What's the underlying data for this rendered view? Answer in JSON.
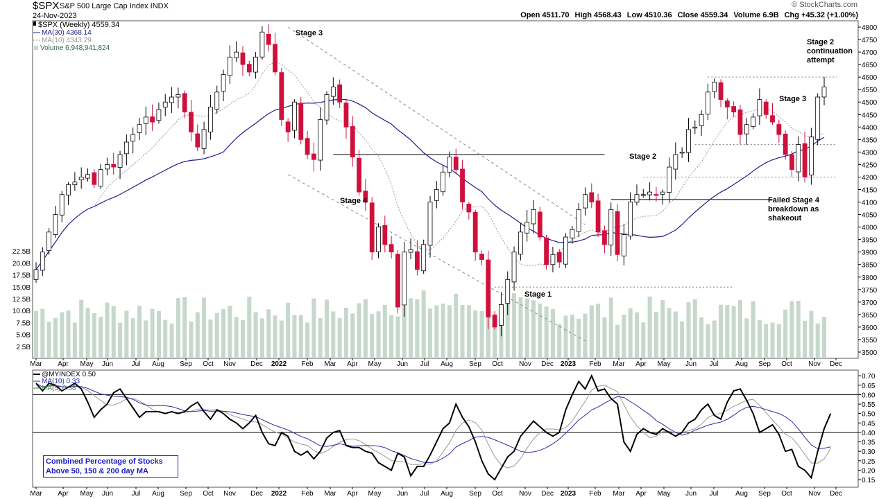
{
  "header": {
    "symbol": "$SPX",
    "name": "S&P 500 Large Cap Index  INDX",
    "date": "24-Nov-2023",
    "credit": "© StockCharts.com",
    "open": "Open 4511.70",
    "high": "High 4568.43",
    "low": "Low 4510.36",
    "close": "Close 4559.34",
    "volume": "Volume 6.9B",
    "chg": "Chg +45.32 (+1.00%)"
  },
  "colors": {
    "up": "#ffffff",
    "down": "#d0103c",
    "ma30": "#1c1c8c",
    "ma10": "#999999",
    "volume": "#c6d8cc",
    "breadth": "#000000",
    "breadth_ma10": "#2a2aa0",
    "breadth_ma5": "#999999",
    "box_text": "#1c1cc8"
  },
  "legend": {
    "price": "$SPX (Weekly) 4559.34",
    "ma30": "MA(30) 4368.14",
    "ma10": "MA(10) 4343.29",
    "volume": "Volume 6,948,941,824"
  },
  "breadth_legend": {
    "main": "@MYINDEX 0.50",
    "ma10": "MA(10) 0.33",
    "ma5": "MA(5) 0.38"
  },
  "breadth_box": {
    "line1": "Combined Percentage of Stocks",
    "line2": "Above 50, 150 & 200 day MA"
  },
  "annotations": {
    "stage3_left": "Stage 3",
    "stage4": "Stage 4",
    "stage1": "Stage 1",
    "stage2": "Stage 2",
    "stage2_cont": [
      "Stage 2",
      "continuation",
      "attempt"
    ],
    "stage3_right": "Stage 3",
    "failed": [
      "Failed Stage 4",
      "breakdown as",
      "shakeout"
    ]
  },
  "chart_data": [
    {
      "type": "candlestick",
      "title": "$SPX S&P 500 Large Cap Index (Weekly)",
      "x_ticks": [
        "Mar",
        "Apr",
        "May",
        "Jun",
        "Jul",
        "Aug",
        "Sep",
        "Oct",
        "Nov",
        "Dec",
        "2022",
        "Feb",
        "Mar",
        "Apr",
        "May",
        "Jun",
        "Jul",
        "Aug",
        "Sep",
        "Oct",
        "Nov",
        "Dec",
        "2023",
        "Feb",
        "Mar",
        "Apr",
        "May",
        "Jun",
        "Jul",
        "Aug",
        "Sep",
        "Oct",
        "Nov",
        "Dec"
      ],
      "y_ticks": [
        3500,
        3550,
        3600,
        3650,
        3700,
        3750,
        3800,
        3850,
        3900,
        3950,
        4000,
        4050,
        4100,
        4150,
        4200,
        4250,
        4300,
        4350,
        4400,
        4450,
        4500,
        4550,
        4600,
        4650,
        4700,
        4750,
        4800
      ],
      "ylim": [
        3475,
        4825
      ],
      "volume_ticks": [
        "2.5B",
        "5.0B",
        "7.5B",
        "10.0B",
        "12.5B",
        "15.0B",
        "17.5B",
        "20.0B",
        "22.5B"
      ],
      "closes_approx": [
        3830,
        3900,
        3980,
        4050,
        4130,
        4170,
        4180,
        4200,
        4210,
        4170,
        4230,
        4250,
        4240,
        4290,
        4340,
        4370,
        4410,
        4440,
        4420,
        4470,
        4500,
        4520,
        4530,
        4460,
        4380,
        4320,
        4390,
        4480,
        4540,
        4610,
        4680,
        4700,
        4650,
        4620,
        4680,
        4780,
        4730,
        4620,
        4430,
        4380,
        4500,
        4350,
        4290,
        4270,
        4430,
        4530,
        4560,
        4500,
        4400,
        4280,
        4140,
        4100,
        3900,
        4000,
        3930,
        3900,
        3680,
        3900,
        3910,
        3830,
        3930,
        4100,
        4150,
        4220,
        4280,
        4230,
        4100,
        4060,
        3900,
        3870,
        3640,
        3600,
        3690,
        3790,
        3900,
        3980,
        4020,
        4070,
        3960,
        3850,
        3890,
        3860,
        3960,
        3990,
        4070,
        4130,
        4100,
        3980,
        3930,
        4070,
        3890,
        3970,
        4100,
        4130,
        4130,
        4140,
        4130,
        4140,
        4240,
        4290,
        4300,
        4390,
        4400,
        4450,
        4540,
        4580,
        4510,
        4480,
        4460,
        4370,
        4410,
        4440,
        4510,
        4450,
        4420,
        4370,
        4290,
        4230,
        4330,
        4200,
        4360,
        4520,
        4560
      ],
      "annotations": [
        "Stage 3",
        "Stage 4",
        "Stage 1",
        "Stage 2",
        "Stage 2 continuation attempt",
        "Stage 3",
        "Failed Stage 4 breakdown as shakeout"
      ],
      "horizontal_levels": [
        4290,
        4110,
        4200,
        4600,
        4330,
        3760
      ]
    },
    {
      "type": "line",
      "title": "@MYINDEX",
      "series": [
        {
          "name": "@MYINDEX",
          "last": 0.5
        },
        {
          "name": "MA(10)",
          "last": 0.33
        },
        {
          "name": "MA(5)",
          "last": 0.38
        }
      ],
      "y_ticks": [
        0.15,
        0.2,
        0.25,
        0.3,
        0.35,
        0.4,
        0.45,
        0.5,
        0.55,
        0.6,
        0.65,
        0.7
      ],
      "ylim": [
        0.11,
        0.73
      ],
      "reference_lines": [
        0.6,
        0.4
      ],
      "main_values_approx": [
        0.66,
        0.62,
        0.66,
        0.65,
        0.62,
        0.64,
        0.66,
        0.63,
        0.56,
        0.48,
        0.52,
        0.55,
        0.61,
        0.63,
        0.58,
        0.53,
        0.48,
        0.51,
        0.51,
        0.51,
        0.5,
        0.51,
        0.5,
        0.51,
        0.54,
        0.56,
        0.51,
        0.47,
        0.52,
        0.5,
        0.47,
        0.45,
        0.42,
        0.45,
        0.49,
        0.4,
        0.34,
        0.33,
        0.4,
        0.38,
        0.3,
        0.28,
        0.3,
        0.26,
        0.3,
        0.37,
        0.4,
        0.41,
        0.33,
        0.32,
        0.32,
        0.3,
        0.29,
        0.24,
        0.22,
        0.2,
        0.29,
        0.27,
        0.17,
        0.22,
        0.22,
        0.28,
        0.35,
        0.42,
        0.45,
        0.55,
        0.48,
        0.43,
        0.35,
        0.25,
        0.18,
        0.15,
        0.21,
        0.27,
        0.3,
        0.38,
        0.42,
        0.46,
        0.43,
        0.4,
        0.38,
        0.4,
        0.52,
        0.6,
        0.67,
        0.63,
        0.7,
        0.62,
        0.63,
        0.58,
        0.55,
        0.35,
        0.3,
        0.39,
        0.42,
        0.4,
        0.39,
        0.42,
        0.4,
        0.38,
        0.4,
        0.45,
        0.47,
        0.52,
        0.55,
        0.49,
        0.47,
        0.56,
        0.62,
        0.63,
        0.57,
        0.5,
        0.4,
        0.42,
        0.44,
        0.39,
        0.3,
        0.31,
        0.22,
        0.2,
        0.16,
        0.3,
        0.42,
        0.5
      ],
      "note": "Combined Percentage of Stocks Above 50, 150 & 200 day MA"
    }
  ]
}
